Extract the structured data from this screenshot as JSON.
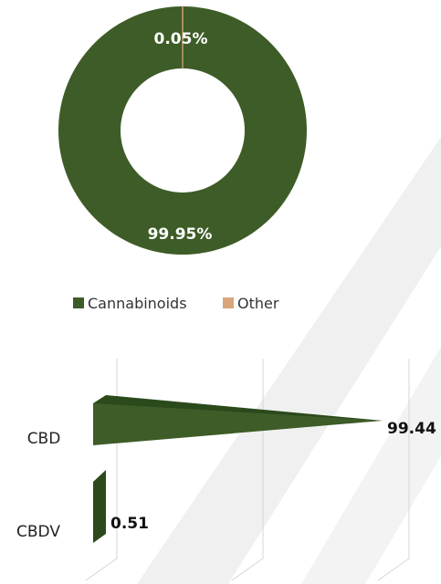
{
  "chart_data": [
    {
      "type": "pie",
      "donut": true,
      "categories": [
        "Cannabinoids",
        "Other"
      ],
      "values": [
        99.95,
        0.05
      ],
      "data_labels": [
        "99.95%",
        "0.05%"
      ],
      "colors": [
        "#3d5c27",
        "#d9a57a"
      ],
      "legend": {
        "placement": "bottom",
        "entries": [
          "Cannabinoids",
          "Other"
        ]
      }
    },
    {
      "type": "bar",
      "orientation": "horizontal",
      "style": "3d-cone",
      "categories": [
        "CBD",
        "CBDV"
      ],
      "values": [
        99.44,
        0.51
      ],
      "data_labels": [
        "99.44",
        "0.51"
      ],
      "colors": [
        "#3d5c27",
        "#2a4a1c"
      ],
      "grid": true
    }
  ],
  "background": {
    "watermark": "decorative diagonal light-grey stripes"
  }
}
